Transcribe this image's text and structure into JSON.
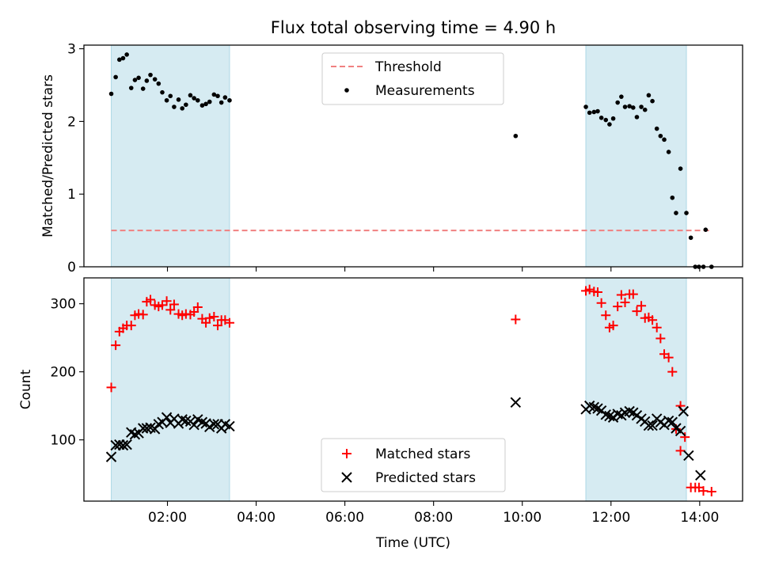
{
  "chart_data": [
    {
      "type": "scatter",
      "title": "Flux total observing time = 4.90 h",
      "xlabel": "",
      "ylabel": "Matched/Predicted stars",
      "xlim": [
        "00:07",
        "14:58"
      ],
      "ylim": [
        0,
        3.05
      ],
      "yticks": [
        "0",
        "1",
        "2",
        "3"
      ],
      "grid": false,
      "legend_position": "top-center",
      "shaded_intervals": [
        [
          "00:44",
          "03:24"
        ],
        [
          "11:26",
          "13:42"
        ]
      ],
      "shade_color": "#add8e6",
      "threshold": {
        "name": "Threshold",
        "value": 0.5,
        "x_range": [
          "00:44",
          "14:16"
        ],
        "color": "#f08080",
        "style": "dashed"
      },
      "series": [
        {
          "name": "Measurements",
          "color": "#000000",
          "marker": "dot",
          "points": [
            [
              "00:44",
              2.38
            ],
            [
              "00:50",
              2.61
            ],
            [
              "00:55",
              2.85
            ],
            [
              "01:00",
              2.87
            ],
            [
              "01:05",
              2.92
            ],
            [
              "01:11",
              2.46
            ],
            [
              "01:16",
              2.57
            ],
            [
              "01:21",
              2.6
            ],
            [
              "01:27",
              2.45
            ],
            [
              "01:32",
              2.56
            ],
            [
              "01:37",
              2.64
            ],
            [
              "01:43",
              2.58
            ],
            [
              "01:48",
              2.52
            ],
            [
              "01:53",
              2.4
            ],
            [
              "01:59",
              2.29
            ],
            [
              "02:04",
              2.35
            ],
            [
              "02:09",
              2.2
            ],
            [
              "02:15",
              2.3
            ],
            [
              "02:20",
              2.18
            ],
            [
              "02:25",
              2.23
            ],
            [
              "02:31",
              2.36
            ],
            [
              "02:36",
              2.32
            ],
            [
              "02:41",
              2.29
            ],
            [
              "02:47",
              2.22
            ],
            [
              "02:52",
              2.24
            ],
            [
              "02:57",
              2.27
            ],
            [
              "03:03",
              2.37
            ],
            [
              "03:08",
              2.35
            ],
            [
              "03:13",
              2.26
            ],
            [
              "03:18",
              2.33
            ],
            [
              "03:24",
              2.29
            ],
            [
              "09:51",
              1.8
            ],
            [
              "11:26",
              2.2
            ],
            [
              "11:31",
              2.12
            ],
            [
              "11:37",
              2.13
            ],
            [
              "11:42",
              2.14
            ],
            [
              "11:47",
              2.05
            ],
            [
              "11:53",
              2.02
            ],
            [
              "11:58",
              1.96
            ],
            [
              "12:03",
              2.04
            ],
            [
              "12:09",
              2.26
            ],
            [
              "12:14",
              2.34
            ],
            [
              "12:19",
              2.2
            ],
            [
              "12:25",
              2.21
            ],
            [
              "12:30",
              2.19
            ],
            [
              "12:35",
              2.06
            ],
            [
              "12:41",
              2.2
            ],
            [
              "12:46",
              2.16
            ],
            [
              "12:51",
              2.36
            ],
            [
              "12:56",
              2.28
            ],
            [
              "13:02",
              1.9
            ],
            [
              "13:07",
              1.8
            ],
            [
              "13:12",
              1.75
            ],
            [
              "13:18",
              1.58
            ],
            [
              "13:23",
              0.95
            ],
            [
              "13:28",
              0.74
            ],
            [
              "13:34",
              1.35
            ],
            [
              "13:42",
              0.74
            ],
            [
              "13:48",
              0.4
            ],
            [
              "13:54",
              0.0
            ],
            [
              "13:59",
              0.0
            ],
            [
              "14:05",
              0.0
            ],
            [
              "14:08",
              0.51
            ],
            [
              "14:16",
              0.0
            ]
          ]
        }
      ]
    },
    {
      "type": "scatter",
      "title": "",
      "xlabel": "Time (UTC)",
      "ylabel": "Count",
      "xlim": [
        "00:07",
        "14:58"
      ],
      "ylim": [
        10,
        338
      ],
      "yticks": [
        "100",
        "200",
        "300"
      ],
      "xticks": [
        "02:00",
        "04:00",
        "06:00",
        "08:00",
        "10:00",
        "12:00",
        "14:00"
      ],
      "grid": false,
      "legend_position": "bottom-center",
      "shaded_intervals": [
        [
          "00:44",
          "03:24"
        ],
        [
          "11:26",
          "13:42"
        ]
      ],
      "shade_color": "#add8e6",
      "series": [
        {
          "name": "Matched stars",
          "color": "#ff0000",
          "marker": "plus",
          "points": [
            [
              "00:44",
              177
            ],
            [
              "00:50",
              239
            ],
            [
              "00:55",
              259
            ],
            [
              "01:00",
              264
            ],
            [
              "01:05",
              268
            ],
            [
              "01:11",
              268
            ],
            [
              "01:16",
              283
            ],
            [
              "01:21",
              285
            ],
            [
              "01:27",
              284
            ],
            [
              "01:32",
              303
            ],
            [
              "01:37",
              306
            ],
            [
              "01:43",
              298
            ],
            [
              "01:48",
              296
            ],
            [
              "01:53",
              298
            ],
            [
              "01:59",
              304
            ],
            [
              "02:04",
              291
            ],
            [
              "02:09",
              299
            ],
            [
              "02:15",
              285
            ],
            [
              "02:20",
              283
            ],
            [
              "02:25",
              285
            ],
            [
              "02:31",
              284
            ],
            [
              "02:36",
              288
            ],
            [
              "02:41",
              295
            ],
            [
              "02:47",
              278
            ],
            [
              "02:52",
              272
            ],
            [
              "02:57",
              279
            ],
            [
              "03:03",
              281
            ],
            [
              "03:08",
              268
            ],
            [
              "03:13",
              276
            ],
            [
              "03:18",
              276
            ],
            [
              "03:24",
              272
            ],
            [
              "09:51",
              277
            ],
            [
              "11:26",
              319
            ],
            [
              "11:31",
              321
            ],
            [
              "11:37",
              318
            ],
            [
              "11:42",
              317
            ],
            [
              "11:47",
              301
            ],
            [
              "11:53",
              283
            ],
            [
              "11:58",
              265
            ],
            [
              "12:03",
              268
            ],
            [
              "12:09",
              296
            ],
            [
              "12:14",
              313
            ],
            [
              "12:19",
              302
            ],
            [
              "12:25",
              314
            ],
            [
              "12:30",
              314
            ],
            [
              "12:35",
              289
            ],
            [
              "12:41",
              297
            ],
            [
              "12:46",
              279
            ],
            [
              "12:51",
              280
            ],
            [
              "12:56",
              276
            ],
            [
              "13:02",
              265
            ],
            [
              "13:07",
              249
            ],
            [
              "13:12",
              226
            ],
            [
              "13:18",
              221
            ],
            [
              "13:23",
              200
            ],
            [
              "13:28",
              116
            ],
            [
              "13:34",
              84
            ],
            [
              "13:34",
              150
            ],
            [
              "13:40",
              104
            ],
            [
              "13:48",
              30
            ],
            [
              "13:54",
              30
            ],
            [
              "13:59",
              30
            ],
            [
              "14:05",
              25
            ],
            [
              "14:16",
              24
            ]
          ]
        },
        {
          "name": "Predicted stars",
          "color": "#000000",
          "marker": "x",
          "points": [
            [
              "00:44",
              75
            ],
            [
              "00:50",
              92
            ],
            [
              "00:55",
              93
            ],
            [
              "01:00",
              92
            ],
            [
              "01:05",
              93
            ],
            [
              "01:11",
              111
            ],
            [
              "01:16",
              108
            ],
            [
              "01:21",
              110
            ],
            [
              "01:27",
              117
            ],
            [
              "01:32",
              117
            ],
            [
              "01:37",
              118
            ],
            [
              "01:43",
              116
            ],
            [
              "01:48",
              123
            ],
            [
              "01:53",
              126
            ],
            [
              "01:59",
              133
            ],
            [
              "02:04",
              125
            ],
            [
              "02:09",
              131
            ],
            [
              "02:15",
              124
            ],
            [
              "02:20",
              130
            ],
            [
              "02:25",
              128
            ],
            [
              "02:31",
              127
            ],
            [
              "02:36",
              122
            ],
            [
              "02:41",
              130
            ],
            [
              "02:47",
              126
            ],
            [
              "02:52",
              124
            ],
            [
              "02:57",
              119
            ],
            [
              "03:03",
              123
            ],
            [
              "03:08",
              123
            ],
            [
              "03:13",
              117
            ],
            [
              "03:18",
              123
            ],
            [
              "03:24",
              120
            ],
            [
              "09:51",
              155
            ],
            [
              "11:26",
              145
            ],
            [
              "11:31",
              150
            ],
            [
              "11:37",
              148
            ],
            [
              "11:42",
              146
            ],
            [
              "11:47",
              143
            ],
            [
              "11:53",
              137
            ],
            [
              "11:58",
              135
            ],
            [
              "12:03",
              133
            ],
            [
              "12:09",
              138
            ],
            [
              "12:14",
              136
            ],
            [
              "12:19",
              140
            ],
            [
              "12:25",
              142
            ],
            [
              "12:30",
              140
            ],
            [
              "12:35",
              136
            ],
            [
              "12:41",
              131
            ],
            [
              "12:46",
              127
            ],
            [
              "12:51",
              121
            ],
            [
              "12:56",
              121
            ],
            [
              "13:02",
              131
            ],
            [
              "13:07",
              126
            ],
            [
              "13:12",
              122
            ],
            [
              "13:18",
              128
            ],
            [
              "13:23",
              126
            ],
            [
              "13:28",
              117
            ],
            [
              "13:34",
              113
            ],
            [
              "13:38",
              142
            ],
            [
              "13:45",
              77
            ],
            [
              "14:01",
              48
            ]
          ]
        }
      ]
    }
  ]
}
